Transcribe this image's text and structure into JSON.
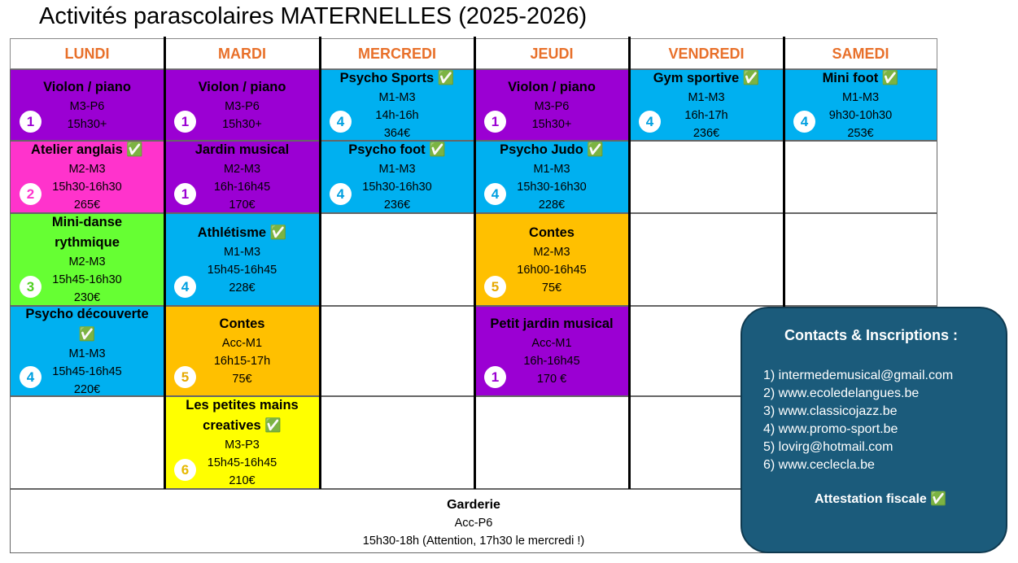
{
  "header": {
    "title": "Activités parascolaires MATERNELLES (2025-2026)"
  },
  "days": [
    {
      "name": "LUNDI",
      "cells": [
        {
          "title": "Violon / piano",
          "level": "M3-P6",
          "time": "15h30+",
          "badge": "1",
          "color": "#9b00d3",
          "badge_color": "#9b00d3"
        },
        {
          "title": "Atelier anglais ✅",
          "level": "M2-M3",
          "time": "15h30-16h30",
          "price": "265€",
          "badge": "2",
          "color": "#ff33cc",
          "badge_color": "#ff33cc"
        },
        {
          "title": "Mini-danse rythmique",
          "level": "M2-M3",
          "time": "15h45-16h30",
          "price": "230€",
          "badge": "3",
          "color": "#66ff33",
          "badge_color": "#4fcf20"
        },
        {
          "title": "Psycho découverte ✅",
          "level": "M1-M3",
          "time": "15h45-16h45",
          "price": "220€",
          "badge": "4",
          "color": "#00b0f0",
          "badge_color": "#00a0e0"
        }
      ]
    },
    {
      "name": "MARDI",
      "cells": [
        {
          "title": "Violon / piano",
          "level": "M3-P6",
          "time": "15h30+",
          "badge": "1",
          "color": "#9b00d3",
          "badge_color": "#9b00d3"
        },
        {
          "title": "Jardin musical",
          "level": "M2-M3",
          "time": "16h-16h45",
          "price": "170€",
          "badge": "1",
          "color": "#9b00d3",
          "badge_color": "#9b00d3"
        },
        {
          "title": "Athlétisme ✅",
          "level": "M1-M3",
          "time": "15h45-16h45",
          "price": "228€",
          "badge": "4",
          "color": "#00b0f0",
          "badge_color": "#00a0e0"
        },
        {
          "title": "Contes",
          "level": "Acc-M1",
          "time": "16h15-17h",
          "price": "75€",
          "badge": "5",
          "color": "#ffc000",
          "badge_color": "#e6a800"
        },
        {
          "title": "Les petites mains creatives ✅",
          "level": "M3-P3",
          "time": "15h45-16h45",
          "price": "210€",
          "badge": "6",
          "color": "#ffff00",
          "badge_color": "#e6b800"
        }
      ]
    },
    {
      "name": "MERCREDI",
      "cells": [
        {
          "title": "Psycho Sports ✅",
          "level": "M1-M3",
          "time": "14h-16h",
          "price": "364€",
          "badge": "4",
          "color": "#00b0f0",
          "badge_color": "#00a0e0"
        },
        {
          "title": "Psycho foot ✅",
          "level": "M1-M3",
          "time": "15h30-16h30",
          "price": "236€",
          "badge": "4",
          "color": "#00b0f0",
          "badge_color": "#00a0e0"
        }
      ]
    },
    {
      "name": "JEUDI",
      "cells": [
        {
          "title": "Violon / piano",
          "level": "M3-P6",
          "time": "15h30+",
          "badge": "1",
          "color": "#9b00d3",
          "badge_color": "#9b00d3"
        },
        {
          "title": "Psycho Judo ✅",
          "level": "M1-M3",
          "time": "15h30-16h30",
          "price": "228€",
          "badge": "4",
          "color": "#00b0f0",
          "badge_color": "#00a0e0"
        },
        {
          "title": "Contes",
          "level": "M2-M3",
          "time": "16h00-16h45",
          "price": "75€",
          "badge": "5",
          "color": "#ffc000",
          "badge_color": "#e6a800"
        },
        {
          "title": "Petit jardin musical",
          "level": "Acc-M1",
          "time": "16h-16h45",
          "price": "170 €",
          "badge": "1",
          "color": "#9b00d3",
          "badge_color": "#9b00d3"
        }
      ]
    },
    {
      "name": "VENDREDI",
      "cells": [
        {
          "title": "Gym sportive ✅",
          "level": "M1-M3",
          "time": "16h-17h",
          "price": "236€",
          "badge": "4",
          "color": "#00b0f0",
          "badge_color": "#00a0e0"
        }
      ]
    },
    {
      "name": "SAMEDI",
      "cells": [
        {
          "title": "Mini foot ✅",
          "level": "M1-M3",
          "time": "9h30-10h30",
          "price": "253€",
          "badge": "4",
          "color": "#00b0f0",
          "badge_color": "#00a0e0"
        }
      ]
    }
  ],
  "garderie": {
    "title": "Garderie",
    "level": "Acc-P6",
    "time": "15h30-18h (Attention, 17h30 le mercredi !)"
  },
  "contacts": {
    "title": "Contacts & Inscriptions :",
    "lines": [
      "1) intermedemusical@gmail.com",
      "2) www.ecoledelangues.be",
      "3)  www.classicojazz.be",
      "4) www.promo-sport.be",
      "5) lovirg@hotmail.com",
      "6) www.ceclecla.be"
    ],
    "note": "Attestation fiscale ✅"
  }
}
